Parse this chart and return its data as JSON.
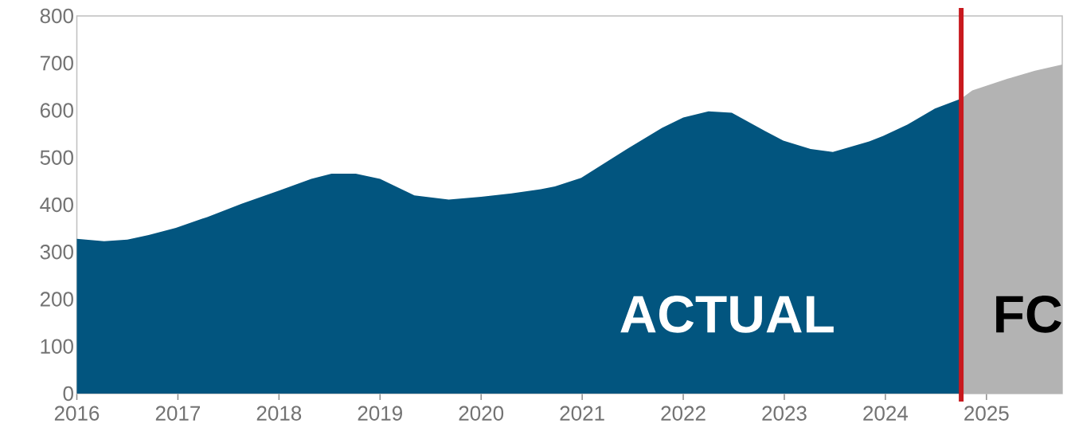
{
  "chart_data": {
    "type": "area",
    "series": [
      {
        "color": "#02557f",
        "x": [
          2016,
          2016.27,
          2016.5,
          2016.71,
          2016.98,
          2017.29,
          2017.63,
          2018,
          2018.32,
          2018.52,
          2018.76,
          2019,
          2019.34,
          2019.68,
          2020,
          2020.3,
          2020.59,
          2020.73,
          2020.99,
          2021.45,
          2021.79,
          2022,
          2022.25,
          2022.48,
          2022.81,
          2022.99,
          2023.26,
          2023.48,
          2023.84,
          2023.98,
          2024.22,
          2024.49,
          2024.75
        ],
        "values": [
          328,
          323,
          326,
          336,
          351,
          374,
          402,
          430,
          455,
          466,
          466,
          455,
          420,
          411,
          417,
          424,
          433,
          439,
          457,
          519,
          563,
          585,
          598,
          595,
          556,
          536,
          518,
          512,
          534,
          546,
          570,
          604,
          625
        ]
      },
      {
        "color": "#b3b3b3",
        "x": [
          2024.75,
          2024.86,
          2025.21,
          2025.48,
          2025.75
        ],
        "values": [
          625,
          642,
          667,
          684,
          697
        ]
      }
    ],
    "xlim": [
      2016,
      2025.75
    ],
    "ylim": [
      0,
      800
    ],
    "xticks": [
      2016,
      2017,
      2018,
      2019,
      2020,
      2021,
      2022,
      2023,
      2024,
      2025
    ],
    "yticks": [
      0,
      100,
      200,
      300,
      400,
      500,
      600,
      700,
      800
    ],
    "grid": false,
    "ref_lines": [
      {
        "axis": "x",
        "value": 2024.75,
        "color": "#c8191e"
      }
    ],
    "annotations": [
      "ACTUAL",
      "FC"
    ]
  }
}
